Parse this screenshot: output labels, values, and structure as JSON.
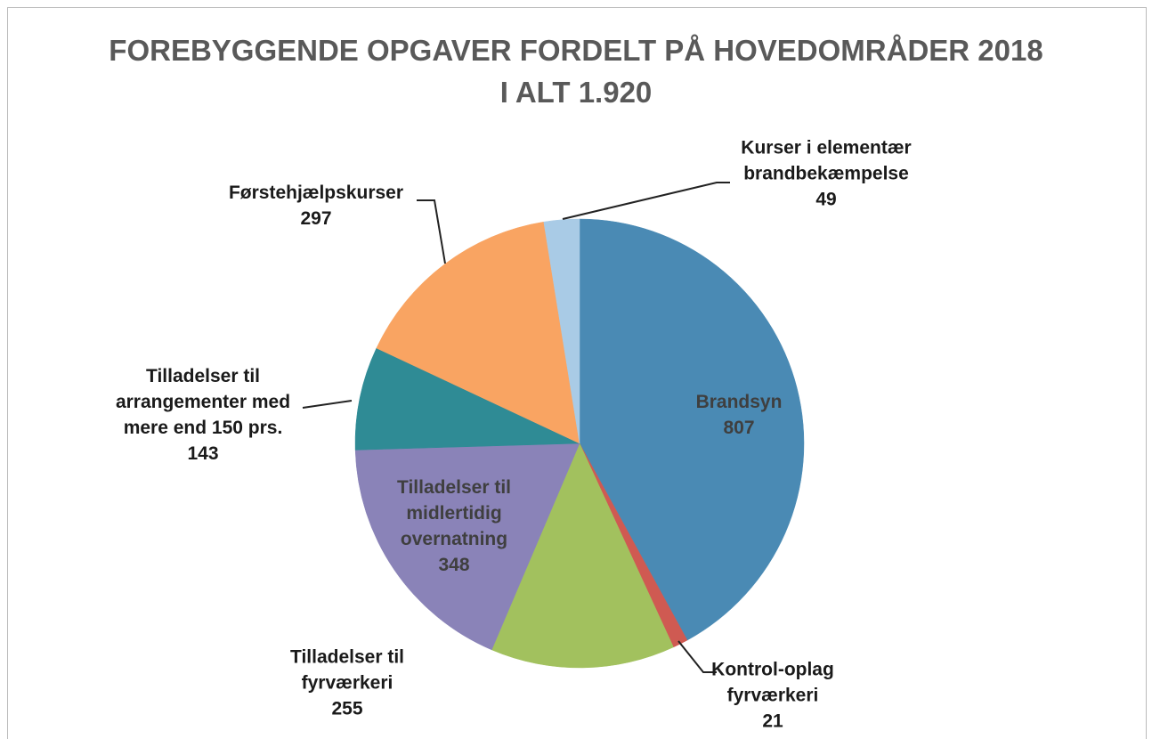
{
  "chart_data": {
    "type": "pie",
    "title": "FOREBYGGENDE OPGAVER FORDELT PÅ HOVEDOMRÅDER 2018",
    "subtitle": "I ALT 1.920",
    "categories": [
      "Brandsyn",
      "Kontrol-oplag fyrværkeri",
      "Tilladelser til fyrværkeri",
      "Tilladelser til midlertidig overnatning",
      "Tilladelser til arrangementer med mere end 150 prs.",
      "Førstehjælpskurser",
      "Kurser i elementær brandbekæmpelse"
    ],
    "values": [
      807,
      21,
      255,
      348,
      143,
      297,
      49
    ],
    "colors": [
      "#4a8ab4",
      "#cf5a52",
      "#a2c15e",
      "#8a83b8",
      "#2f8b95",
      "#f9a462",
      "#a9cbe6"
    ]
  }
}
